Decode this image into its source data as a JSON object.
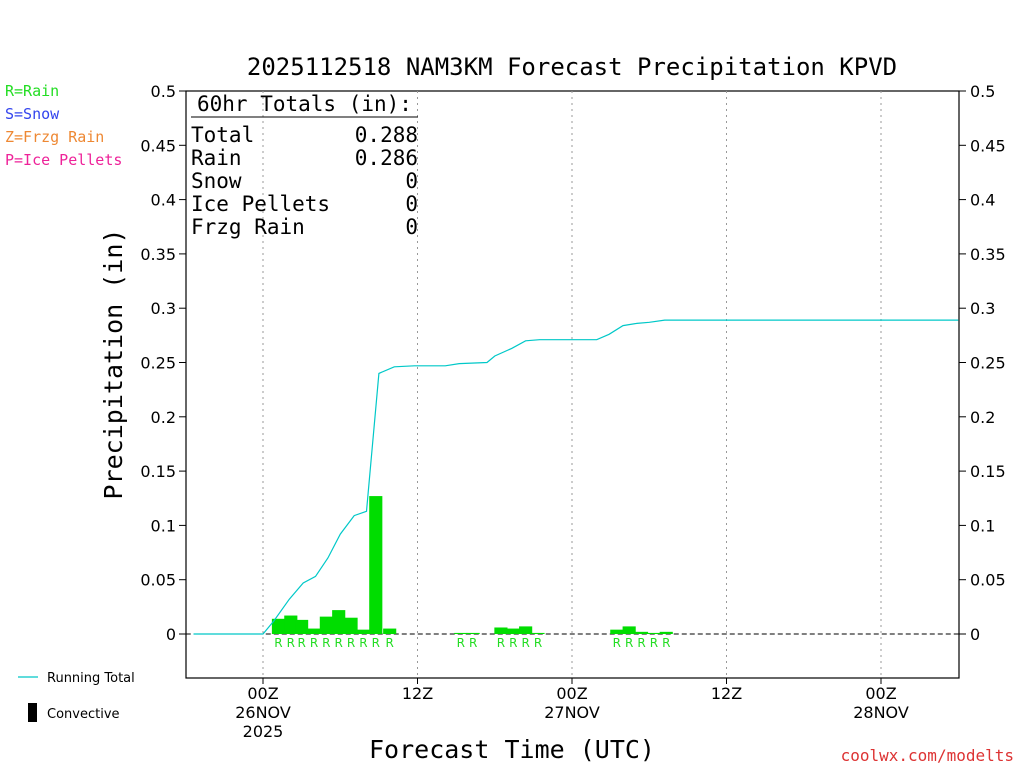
{
  "chart_data": {
    "type": "bar",
    "title": "2025112518 NAM3KM Forecast Precipitation KPVD",
    "xlabel": "Forecast Time (UTC)",
    "ylabel": "Precipitation (in)",
    "ylim": [
      -0.04,
      0.5
    ],
    "xlim_hours": [
      -5,
      45
    ],
    "y_ticks": [
      "0",
      "0.05",
      "0.1",
      "0.15",
      "0.2",
      "0.25",
      "0.3",
      "0.35",
      "0.4",
      "0.45",
      "0.5"
    ],
    "y_tick_values": [
      0,
      0.05,
      0.1,
      0.15,
      0.2,
      0.25,
      0.3,
      0.35,
      0.4,
      0.45,
      0.5
    ],
    "x_ticks": [
      {
        "hour": 0,
        "lines": [
          "00Z",
          "26NOV",
          "2025"
        ]
      },
      {
        "hour": 10,
        "lines": [
          "12Z"
        ]
      },
      {
        "hour": 20,
        "lines": [
          "00Z",
          "27NOV"
        ]
      },
      {
        "hour": 30,
        "lines": [
          "12Z"
        ]
      },
      {
        "hour": 40,
        "lines": [
          "00Z",
          "28NOV"
        ]
      }
    ],
    "ptype_legend": [
      {
        "label": "R=Rain",
        "color": "#22dd22"
      },
      {
        "label": "S=Snow",
        "color": "#3344ee"
      },
      {
        "label": "Z=Frzg Rain",
        "color": "#ee8833"
      },
      {
        "label": "P=Ice Pellets",
        "color": "#ee2299"
      }
    ],
    "totals": {
      "header": "60hr Totals (in):",
      "rows": [
        {
          "label": "Total",
          "value": "0.288"
        },
        {
          "label": "Rain",
          "value": "0.286"
        },
        {
          "label": "Snow",
          "value": "0"
        },
        {
          "label": "Ice Pellets",
          "value": "0"
        },
        {
          "label": "Frzg Rain",
          "value": "0"
        }
      ]
    },
    "series": [
      {
        "name": "Hourly Rain",
        "kind": "bar",
        "color": "#00dd00",
        "bar_width_hours": 0.85,
        "points": [
          {
            "hour": 1,
            "value": 0.014,
            "ptype": "R"
          },
          {
            "hour": 1.8,
            "value": 0.017,
            "ptype": "R"
          },
          {
            "hour": 2.5,
            "value": 0.013,
            "ptype": "R"
          },
          {
            "hour": 3.3,
            "value": 0.005,
            "ptype": "R"
          },
          {
            "hour": 4.1,
            "value": 0.016,
            "ptype": "R"
          },
          {
            "hour": 4.9,
            "value": 0.022,
            "ptype": "R"
          },
          {
            "hour": 5.7,
            "value": 0.015,
            "ptype": "R"
          },
          {
            "hour": 6.5,
            "value": 0.004,
            "ptype": "R"
          },
          {
            "hour": 7.3,
            "value": 0.127,
            "ptype": "R"
          },
          {
            "hour": 8.2,
            "value": 0.005,
            "ptype": "R"
          },
          {
            "hour": 12.8,
            "value": 0.001,
            "ptype": "R"
          },
          {
            "hour": 13.6,
            "value": 0.001,
            "ptype": "R"
          },
          {
            "hour": 15.4,
            "value": 0.006,
            "ptype": "R"
          },
          {
            "hour": 16.2,
            "value": 0.005,
            "ptype": "R"
          },
          {
            "hour": 17,
            "value": 0.007,
            "ptype": "R"
          },
          {
            "hour": 17.8,
            "value": 0.001,
            "ptype": "R"
          },
          {
            "hour": 22.9,
            "value": 0.004,
            "ptype": "R"
          },
          {
            "hour": 23.7,
            "value": 0.007,
            "ptype": "R"
          },
          {
            "hour": 24.5,
            "value": 0.002,
            "ptype": "R"
          },
          {
            "hour": 25.3,
            "value": 0.001,
            "ptype": "R"
          },
          {
            "hour": 26.1,
            "value": 0.002,
            "ptype": "R"
          }
        ]
      },
      {
        "name": "Running Total",
        "kind": "line",
        "color": "#00c8c8",
        "points": [
          [
            -4.5,
            0
          ],
          [
            0,
            0
          ],
          [
            0.7,
            0.012
          ],
          [
            1.7,
            0.032
          ],
          [
            2.6,
            0.047
          ],
          [
            3.4,
            0.053
          ],
          [
            4.2,
            0.07
          ],
          [
            5.0,
            0.092
          ],
          [
            5.9,
            0.109
          ],
          [
            6.7,
            0.113
          ],
          [
            7.5,
            0.24
          ],
          [
            8.5,
            0.246
          ],
          [
            9.8,
            0.247
          ],
          [
            11.8,
            0.247
          ],
          [
            12.7,
            0.249
          ],
          [
            14.5,
            0.25
          ],
          [
            15.0,
            0.256
          ],
          [
            16.1,
            0.263
          ],
          [
            17.0,
            0.27
          ],
          [
            17.9,
            0.271
          ],
          [
            20.0,
            0.271
          ],
          [
            21.6,
            0.271
          ],
          [
            22.4,
            0.276
          ],
          [
            23.3,
            0.284
          ],
          [
            24.2,
            0.286
          ],
          [
            25.0,
            0.287
          ],
          [
            26.0,
            0.289
          ],
          [
            45,
            0.289
          ]
        ]
      }
    ],
    "bottom_legend": [
      {
        "label": "Running Total",
        "symbol": "line",
        "color": "#00c8c8"
      },
      {
        "label": "Convective",
        "symbol": "bar",
        "color": "#000000"
      }
    ],
    "credit": {
      "text": "coolwx.com/modelts",
      "color": "#dd3333"
    }
  }
}
